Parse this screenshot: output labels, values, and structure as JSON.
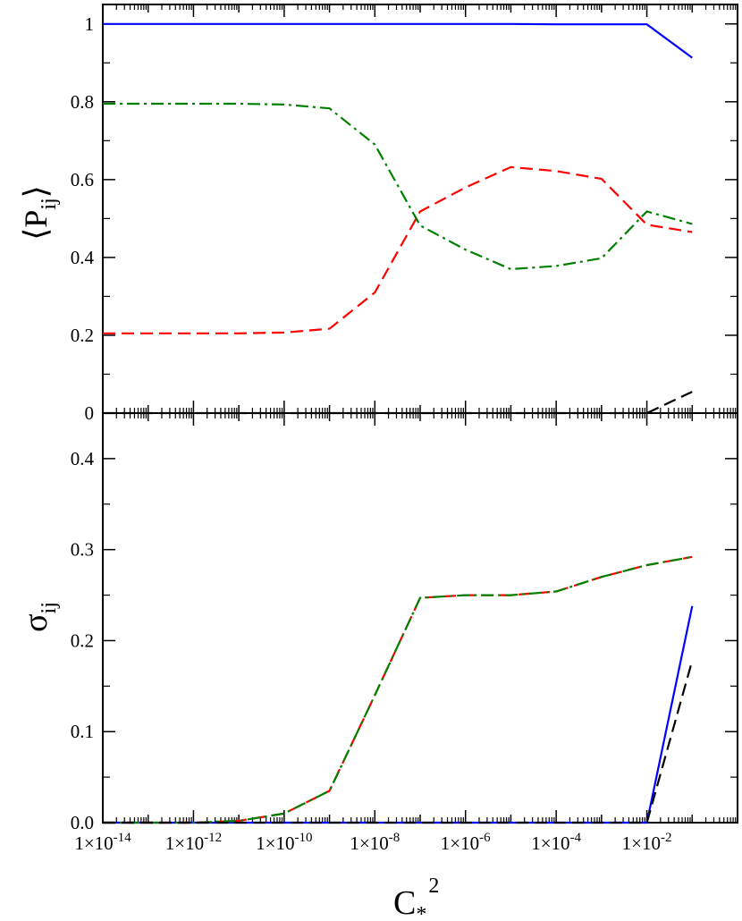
{
  "chart_data": [
    {
      "type": "line",
      "panel": "top",
      "ylabel": "⟨P",
      "ylabel_sub": "ij",
      "ylabel_close": "⟩",
      "xscale": "log",
      "xlim": [
        1e-14,
        1
      ],
      "ylim": [
        0,
        1.05
      ],
      "yticks": [
        0,
        0.2,
        0.4,
        0.6,
        0.8,
        1
      ],
      "ytick_labels": [
        "0",
        "0.2",
        "0.4",
        "0.6",
        "0.8",
        "1"
      ],
      "x": [
        1e-14,
        1e-13,
        1e-12,
        1e-11,
        1e-10,
        1e-09,
        1e-08,
        1e-07,
        1e-06,
        1e-05,
        0.0001,
        0.001,
        0.01,
        0.1
      ],
      "series": [
        {
          "color": "#0000ff",
          "dash": "",
          "values": [
            1,
            1,
            1,
            1,
            1,
            1,
            1,
            1,
            1,
            1,
            0.999,
            0.999,
            0.999,
            0.913
          ]
        },
        {
          "color": "#ff0000",
          "dash": "14 7",
          "values": [
            0.205,
            0.205,
            0.205,
            0.205,
            0.207,
            0.217,
            0.31,
            0.518,
            0.58,
            0.632,
            0.622,
            0.602,
            0.484,
            0.465
          ]
        },
        {
          "color": "#008000",
          "dash": "14 5 3 5",
          "values": [
            0.795,
            0.795,
            0.795,
            0.795,
            0.793,
            0.783,
            0.69,
            0.482,
            0.42,
            0.37,
            0.378,
            0.398,
            0.518,
            0.486
          ]
        },
        {
          "color": "#000000",
          "dash": "14 7",
          "values": [
            0,
            0,
            0,
            0,
            0,
            0,
            0,
            0,
            0,
            0,
            0,
            0,
            0,
            0.055
          ]
        }
      ]
    },
    {
      "type": "line",
      "panel": "bottom",
      "ylabel": "σ",
      "ylabel_sub": "ij",
      "xlabel": "C",
      "xlabel_sub": "*",
      "xlabel_sup": "2",
      "xscale": "log",
      "xlim": [
        1e-14,
        1
      ],
      "ylim": [
        0,
        0.45
      ],
      "yticks": [
        0,
        0.1,
        0.2,
        0.3,
        0.4
      ],
      "ytick_labels": [
        "0.0",
        "0.1",
        "0.2",
        "0.3",
        "0.4"
      ],
      "xticks": [
        1e-14,
        1e-12,
        1e-10,
        1e-08,
        1e-06,
        0.0001,
        0.01
      ],
      "xtick_labels": [
        {
          "base": "1×10",
          "exp": "-14"
        },
        {
          "base": "1×10",
          "exp": "-12"
        },
        {
          "base": "1×10",
          "exp": "-10"
        },
        {
          "base": "1×10",
          "exp": "-8"
        },
        {
          "base": "1×10",
          "exp": "-6"
        },
        {
          "base": "1×10",
          "exp": "-4"
        },
        {
          "base": "1×10",
          "exp": "-2"
        }
      ],
      "x": [
        1e-14,
        1e-13,
        1e-12,
        1e-11,
        1e-10,
        1e-09,
        1e-08,
        1e-07,
        1e-06,
        1e-05,
        0.0001,
        0.001,
        0.01,
        0.1
      ],
      "series": [
        {
          "color": "#0000ff",
          "dash": "",
          "values": [
            0,
            0,
            0,
            0,
            0,
            0,
            0,
            0,
            0,
            0,
            0,
            0,
            0,
            0.238
          ]
        },
        {
          "color": "#ff0000",
          "dash": "14 7",
          "values": [
            0,
            0,
            0,
            0.002,
            0.01,
            0.035,
            0.14,
            0.247,
            0.25,
            0.25,
            0.254,
            0.27,
            0.283,
            0.292
          ]
        },
        {
          "color": "#008000",
          "dash": "14 5 3 5",
          "values": [
            0,
            0,
            0,
            0.002,
            0.01,
            0.035,
            0.14,
            0.247,
            0.25,
            0.25,
            0.254,
            0.27,
            0.283,
            0.292
          ]
        },
        {
          "color": "#000000",
          "dash": "14 7",
          "values": [
            0,
            0,
            0,
            0,
            0,
            0,
            0,
            0,
            0,
            0,
            0,
            0,
            0,
            0.178
          ]
        }
      ]
    }
  ]
}
